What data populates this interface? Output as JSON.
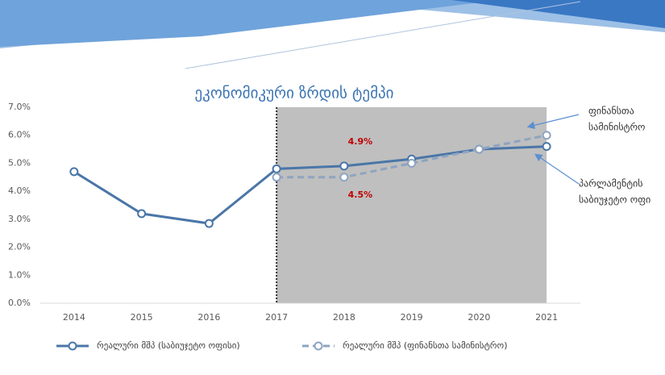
{
  "chart_data": {
    "type": "line",
    "title": "ეკონომიკური ზრდის ტემპი",
    "x": [
      2014,
      2015,
      2016,
      2017,
      2018,
      2019,
      2020,
      2021
    ],
    "xlim": [
      2013.5,
      2021.5
    ],
    "xticks": [
      2014,
      2015,
      2016,
      2017,
      2018,
      2019,
      2020,
      2021
    ],
    "ylim": [
      0,
      7
    ],
    "yticks": [
      {
        "value": 0,
        "label": "0.0%"
      },
      {
        "value": 1,
        "label": "1.0%"
      },
      {
        "value": 2,
        "label": "2.0%"
      },
      {
        "value": 3,
        "label": "3.0%"
      },
      {
        "value": 4,
        "label": "4.0%"
      },
      {
        "value": 5,
        "label": "5.0%"
      },
      {
        "value": 6,
        "label": "6.0%"
      },
      {
        "value": 7,
        "label": "7.0%"
      }
    ],
    "shaded_x": [
      2017,
      2021
    ],
    "series": [
      {
        "name": "რეალური მშპ (საბიუჯეტო ოფისი)",
        "color": "#4a76a8",
        "dashed": false,
        "values": [
          4.7,
          3.2,
          2.85,
          4.8,
          4.9,
          5.15,
          5.5,
          5.6
        ],
        "value_labels": [
          null,
          null,
          null,
          null,
          "4.9%",
          null,
          null,
          null
        ]
      },
      {
        "name": "რეალური მშპ (ფინანსთა სამინისტრო)",
        "color": "#8ea4c0",
        "dashed": true,
        "values": [
          null,
          null,
          null,
          4.5,
          4.5,
          5.0,
          5.5,
          6.0
        ],
        "value_labels": [
          null,
          null,
          null,
          null,
          "4.5%",
          null,
          null,
          null
        ]
      }
    ],
    "annotations": [
      {
        "lines": [
          "ფინანსთა",
          "სამინისტრო"
        ]
      },
      {
        "lines": [
          "პარლამენტის",
          "საბიუჯეტო ოფი"
        ]
      }
    ]
  }
}
